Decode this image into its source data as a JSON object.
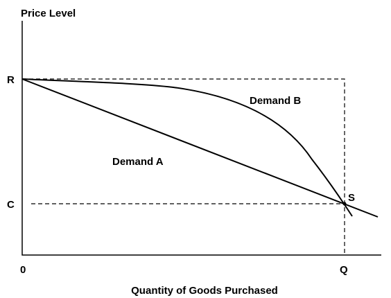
{
  "diagram": {
    "y_axis_label": "Price Level",
    "x_axis_label": "Quantity of Goods Purchased",
    "origin_label": "0",
    "price_labels": [
      "R",
      "C"
    ],
    "quantity_label": "Q",
    "point_label": "S",
    "curves": [
      {
        "label": "Demand A"
      },
      {
        "label": "Demand B"
      }
    ]
  }
}
